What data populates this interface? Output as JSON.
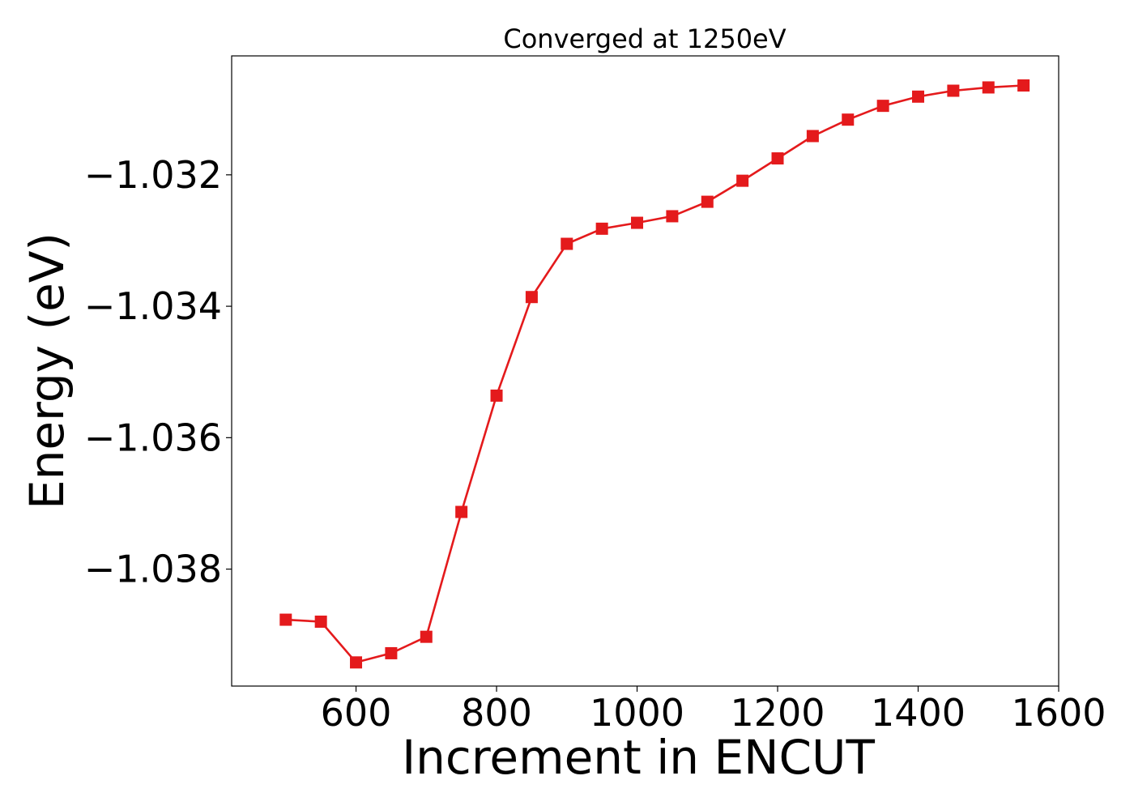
{
  "chart_data": {
    "type": "line",
    "title": "Converged at 1250eV",
    "xlabel": "Increment in ENCUT",
    "ylabel": "Energy (eV)",
    "xlim": [
      423,
      1600
    ],
    "ylim": [
      -1.03978,
      -1.03019
    ],
    "x_ticks": [
      600,
      800,
      1000,
      1200,
      1400,
      1600
    ],
    "x_tick_labels": [
      "600",
      "800",
      "1000",
      "1200",
      "1400",
      "1600"
    ],
    "y_ticks": [
      -1.032,
      -1.034,
      -1.036,
      -1.038
    ],
    "y_tick_labels": [
      "−1.032",
      "−1.034",
      "−1.036",
      "−1.038"
    ],
    "grid": false,
    "series": [
      {
        "color": "#e41a1c",
        "marker": "square",
        "x": [
          500,
          550,
          600,
          650,
          700,
          750,
          800,
          850,
          900,
          950,
          1000,
          1050,
          1100,
          1150,
          1200,
          1250,
          1300,
          1350,
          1400,
          1450,
          1500,
          1550
        ],
        "y": [
          -1.03877,
          -1.0388,
          -1.03942,
          -1.03928,
          -1.03903,
          -1.03713,
          -1.03536,
          -1.03386,
          -1.03305,
          -1.03282,
          -1.03273,
          -1.03263,
          -1.03241,
          -1.03209,
          -1.03175,
          -1.03141,
          -1.03116,
          -1.03095,
          -1.03081,
          -1.03072,
          -1.03067,
          -1.03064
        ]
      }
    ]
  }
}
